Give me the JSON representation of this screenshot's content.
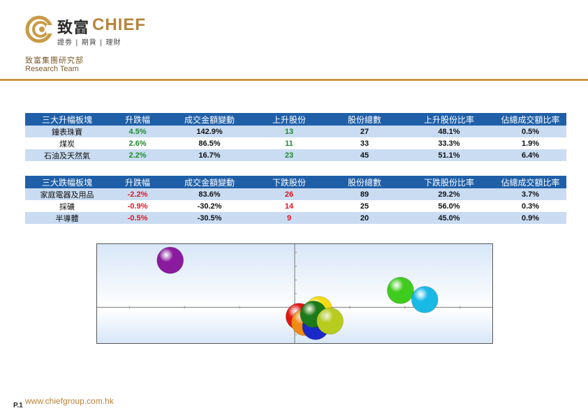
{
  "header": {
    "logo_cn": "致富",
    "logo_en": "CHIEF",
    "tagline": "證劵 | 期貨 | 理財",
    "dept_cn": "致富集團研究部",
    "dept_en": "Research Team"
  },
  "colors": {
    "accent": "#c99a45",
    "header_blue": "#1f5fa8",
    "row_blue": "#c9dcf2",
    "positive": "#1e8a2a",
    "negative": "#e0141e"
  },
  "up_table": {
    "headers": [
      "三大升幅板塊",
      "升跌幅",
      "成交金額變動",
      "上升股份",
      "股份總數",
      "上升股份比率",
      "佔總成交額比率"
    ],
    "rows": [
      [
        "鐘表珠寶",
        "4.5%",
        "142.9%",
        "13",
        "27",
        "48.1%",
        "0.5%"
      ],
      [
        "煤炭",
        "2.6%",
        "86.5%",
        "11",
        "33",
        "33.3%",
        "1.9%"
      ],
      [
        "石油及天然氣",
        "2.2%",
        "16.7%",
        "23",
        "45",
        "51.1%",
        "6.4%"
      ]
    ]
  },
  "down_table": {
    "headers": [
      "三大跌幅板塊",
      "升跌幅",
      "成交金額變動",
      "下跌股份",
      "股份總數",
      "下跌股份比率",
      "佔總成交額比率"
    ],
    "rows": [
      [
        "家庭電器及用品",
        "-2.2%",
        "83.6%",
        "26",
        "89",
        "29.2%",
        "3.7%"
      ],
      [
        "採礦",
        "-0.9%",
        "-30.2%",
        "14",
        "25",
        "56.0%",
        "0.3%"
      ],
      [
        "半導體",
        "-0.5%",
        "-30.5%",
        "9",
        "20",
        "45.0%",
        "0.9%"
      ]
    ]
  },
  "chart_data": {
    "type": "scatter",
    "title": "",
    "xlabel": "",
    "ylabel": "",
    "xlim": [
      -1.8,
      1.8
    ],
    "ylim": [
      -0.8,
      1.4
    ],
    "series": [
      {
        "name": "purple",
        "color": "#8a1a9e",
        "x": -1.13,
        "y": 1.03
      },
      {
        "name": "green",
        "color": "#3fcc1e",
        "x": 0.96,
        "y": 0.37
      },
      {
        "name": "cyan",
        "color": "#19b9e6",
        "x": 1.18,
        "y": 0.17
      },
      {
        "name": "red",
        "color": "#e01812",
        "x": 0.04,
        "y": -0.2
      },
      {
        "name": "orange",
        "color": "#f08a10",
        "x": 0.09,
        "y": -0.33
      },
      {
        "name": "blue",
        "color": "#1a28c8",
        "x": 0.19,
        "y": -0.42
      },
      {
        "name": "yellow",
        "color": "#f2dc10",
        "x": 0.22,
        "y": -0.05
      },
      {
        "name": "dark-green",
        "color": "#1c7a18",
        "x": 0.17,
        "y": -0.15
      },
      {
        "name": "yellow-green",
        "color": "#b8cc1e",
        "x": 0.32,
        "y": -0.3
      }
    ]
  },
  "footer": {
    "page": "P.1",
    "url": "www.chiefgroup.com.hk"
  }
}
